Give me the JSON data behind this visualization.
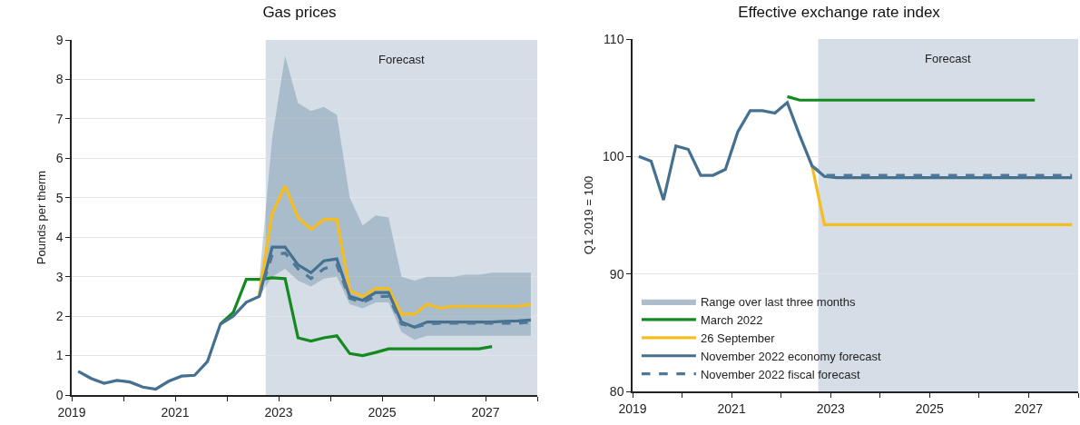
{
  "chart_data": [
    {
      "type": "line",
      "title": "Gas prices",
      "ylabel": "Pounds per therm",
      "grid": "y",
      "marker": "none",
      "x": [
        2019.125,
        2019.375,
        2019.625,
        2019.875,
        2020.125,
        2020.375,
        2020.625,
        2020.875,
        2021.125,
        2021.375,
        2021.625,
        2021.875,
        2022.125,
        2022.375,
        2022.625,
        2022.875,
        2023.125,
        2023.375,
        2023.625,
        2023.875,
        2024.125,
        2024.375,
        2024.625,
        2024.875,
        2025.125,
        2025.375,
        2025.625,
        2025.875,
        2026.125,
        2026.375,
        2026.625,
        2026.875,
        2027.125,
        2027.375,
        2027.625,
        2027.875
      ],
      "xlim": [
        2019,
        2028
      ],
      "xticks": [
        2019,
        {
          "value": 2020,
          "label": null
        },
        2021,
        {
          "value": 2022,
          "label": null
        },
        2023,
        {
          "value": 2024,
          "label": null
        },
        2025,
        {
          "value": 2026,
          "label": null
        },
        2027,
        {
          "value": 2028,
          "label": null
        }
      ],
      "ylim": [
        0,
        9
      ],
      "yticks": [
        0,
        1,
        2,
        3,
        4,
        5,
        6,
        7,
        8,
        9
      ],
      "bands": [
        {
          "axis": "x",
          "from": 2022.75,
          "to": 2028,
          "label": "Forecast",
          "color": "#d5dde6"
        }
      ],
      "series": [
        {
          "color": "#138a20",
          "line_style": "solid",
          "values": [
            null,
            null,
            null,
            null,
            null,
            null,
            null,
            null,
            null,
            null,
            null,
            1.8,
            2.1,
            2.93,
            2.93,
            2.97,
            2.95,
            1.45,
            1.37,
            1.45,
            1.5,
            1.05,
            1.0,
            1.08,
            1.17,
            1.17,
            1.17,
            1.17,
            1.17,
            1.17,
            1.17,
            1.17,
            1.23,
            null,
            null,
            null
          ]
        },
        {
          "color": "#f7bd1e",
          "line_style": "solid",
          "values": [
            null,
            null,
            null,
            null,
            null,
            null,
            null,
            null,
            null,
            null,
            null,
            null,
            null,
            null,
            2.55,
            4.6,
            5.3,
            4.5,
            4.2,
            4.45,
            4.45,
            2.65,
            2.5,
            2.7,
            2.7,
            2.05,
            2.05,
            2.3,
            2.2,
            2.25,
            2.25,
            2.25,
            2.25,
            2.25,
            2.25,
            2.3
          ]
        },
        {
          "color": "#45708f",
          "line_style": "solid",
          "lower": [
            null,
            null,
            null,
            null,
            null,
            null,
            null,
            null,
            null,
            null,
            null,
            null,
            null,
            null,
            2.5,
            3.0,
            3.2,
            2.9,
            2.75,
            2.95,
            3.0,
            2.3,
            2.2,
            2.35,
            2.35,
            1.6,
            1.4,
            1.5,
            1.5,
            1.5,
            1.5,
            1.5,
            1.5,
            1.5,
            1.5,
            1.5
          ],
          "upper": [
            null,
            null,
            null,
            null,
            null,
            null,
            null,
            null,
            null,
            null,
            null,
            null,
            null,
            null,
            2.9,
            6.5,
            8.6,
            7.4,
            7.2,
            7.3,
            7.1,
            5.0,
            4.3,
            4.55,
            4.5,
            3.0,
            2.9,
            3.0,
            3.0,
            3.0,
            3.05,
            3.05,
            3.1,
            3.1,
            3.1,
            3.1
          ],
          "values": [
            0.6,
            0.42,
            0.3,
            0.37,
            0.33,
            0.2,
            0.15,
            0.35,
            0.48,
            0.5,
            0.85,
            1.8,
            2.0,
            2.35,
            2.5,
            3.75,
            3.75,
            3.3,
            3.1,
            3.4,
            3.45,
            2.5,
            2.4,
            2.6,
            2.6,
            1.85,
            1.72,
            1.85,
            1.85,
            1.85,
            1.85,
            1.85,
            1.85,
            1.87,
            1.88,
            1.9
          ]
        },
        {
          "color": "#4f7898",
          "line_style": "dashed",
          "values": [
            null,
            null,
            null,
            null,
            null,
            null,
            null,
            null,
            null,
            null,
            null,
            null,
            null,
            null,
            2.5,
            3.55,
            3.6,
            3.2,
            2.95,
            3.2,
            3.3,
            2.45,
            2.35,
            2.5,
            2.5,
            1.8,
            1.72,
            1.8,
            1.82,
            1.82,
            1.82,
            1.82,
            1.82,
            1.82,
            1.82,
            1.85
          ]
        }
      ]
    },
    {
      "type": "line",
      "title": "Effective exchange rate index",
      "ylabel": "Q1 2019 = 100",
      "grid": "y",
      "marker": "none",
      "legend": "bottom left",
      "x": [
        2019.125,
        2019.375,
        2019.625,
        2019.875,
        2020.125,
        2020.375,
        2020.625,
        2020.875,
        2021.125,
        2021.375,
        2021.625,
        2021.875,
        2022.125,
        2022.375,
        2022.625,
        2022.875,
        2023.125,
        2023.375,
        2023.625,
        2023.875,
        2024.125,
        2024.375,
        2024.625,
        2024.875,
        2025.125,
        2025.375,
        2025.625,
        2025.875,
        2026.125,
        2026.375,
        2026.625,
        2026.875,
        2027.125,
        2027.375,
        2027.625,
        2027.875
      ],
      "xlim": [
        2019,
        2028
      ],
      "xticks": [
        2019,
        {
          "value": 2020,
          "label": null
        },
        2021,
        {
          "value": 2022,
          "label": null
        },
        2023,
        {
          "value": 2024,
          "label": null
        },
        2025,
        {
          "value": 2026,
          "label": null
        },
        2027,
        {
          "value": 2028,
          "label": null
        }
      ],
      "ylim": [
        80,
        110
      ],
      "yticks": [
        80,
        90,
        100,
        110
      ],
      "bands": [
        {
          "axis": "x",
          "from": 2022.75,
          "to": 2028,
          "label": "Forecast",
          "color": "#d5dde6"
        }
      ],
      "series": [
        {
          "name": "Range over last three months",
          "type": "area",
          "color": "#aebdcc",
          "values": [
            null,
            null,
            null,
            null,
            null,
            null,
            null,
            null,
            null,
            null,
            null,
            null,
            null,
            null,
            null,
            null,
            null,
            null,
            null,
            null,
            null,
            null,
            null,
            null,
            null,
            null,
            null,
            null,
            null,
            null,
            null,
            null,
            null,
            null,
            null,
            null
          ]
        },
        {
          "name": "March 2022",
          "color": "#138a20",
          "line_style": "solid",
          "values": [
            null,
            null,
            null,
            null,
            null,
            null,
            null,
            null,
            null,
            null,
            null,
            null,
            105.1,
            104.8,
            104.8,
            104.8,
            104.8,
            104.8,
            104.8,
            104.8,
            104.8,
            104.8,
            104.8,
            104.8,
            104.8,
            104.8,
            104.8,
            104.8,
            104.8,
            104.8,
            104.8,
            104.8,
            104.8,
            null,
            null,
            null
          ]
        },
        {
          "name": "26 September",
          "color": "#f7bd1e",
          "line_style": "solid",
          "values": [
            null,
            null,
            null,
            null,
            null,
            null,
            null,
            null,
            null,
            null,
            null,
            null,
            null,
            null,
            99.2,
            94.2,
            94.2,
            94.2,
            94.2,
            94.2,
            94.2,
            94.2,
            94.2,
            94.2,
            94.2,
            94.2,
            94.2,
            94.2,
            94.2,
            94.2,
            94.2,
            94.2,
            94.2,
            94.2,
            94.2,
            94.2
          ]
        },
        {
          "name": "November 2022 economy forecast",
          "color": "#45708f",
          "line_style": "solid",
          "values": [
            100.0,
            99.6,
            96.3,
            100.9,
            100.6,
            98.4,
            98.4,
            98.9,
            102.1,
            103.9,
            103.9,
            103.7,
            104.6,
            101.8,
            99.2,
            98.3,
            98.2,
            98.2,
            98.2,
            98.2,
            98.2,
            98.2,
            98.2,
            98.2,
            98.2,
            98.2,
            98.2,
            98.2,
            98.2,
            98.2,
            98.2,
            98.2,
            98.2,
            98.2,
            98.2,
            98.2
          ]
        },
        {
          "name": "November 2022 fiscal forecast",
          "color": "#4f7898",
          "line_style": "dashed",
          "values": [
            null,
            null,
            null,
            null,
            null,
            null,
            null,
            null,
            null,
            null,
            null,
            null,
            null,
            null,
            99.2,
            98.4,
            98.4,
            98.4,
            98.4,
            98.4,
            98.4,
            98.4,
            98.4,
            98.4,
            98.4,
            98.4,
            98.4,
            98.4,
            98.4,
            98.4,
            98.4,
            98.4,
            98.4,
            98.4,
            98.4,
            98.4
          ]
        }
      ]
    }
  ]
}
